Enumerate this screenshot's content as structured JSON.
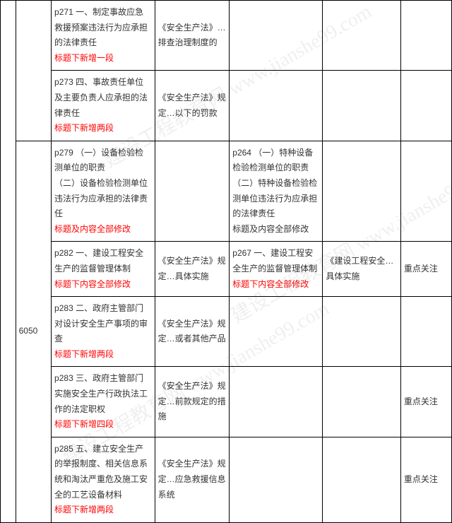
{
  "watermark": {
    "text": "建设工程教育网 www.jianshe99.com"
  },
  "code": "6050",
  "rows": [
    {
      "c2": "p271 一、制定事故应急救援预案违法行为应承担的法律责任",
      "c2_red": "标题下新增一段",
      "c3": "《安全生产法》…排查治理制度的",
      "c4": "",
      "c4_red": "",
      "c5": "",
      "c6": ""
    },
    {
      "c2": "p273 四、事故责任单位及主要负责人应承担的法律责任",
      "c2_red": "标题下新增两段",
      "c3": "《安全生产法》规定…以下的罚款",
      "c4": "",
      "c4_red": "",
      "c5": "",
      "c6": ""
    },
    {
      "c2": "p279 （一）设备检验检测单位的职责\n（二）设备检验检测单位违法行为应承担的法律责任",
      "c2_red": "标题及内容全部修改",
      "c3": "",
      "c4": "p264 （一）特种设备检验检测单位的职责\n（二）特种设备检验检测单位违法行为应承担的法律责任\n标题及内容全部修改",
      "c4_red": "",
      "c5": "",
      "c6": ""
    },
    {
      "c2": "p282 一、建设工程安全生产的监督管理体制",
      "c2_red": "标题下内容全部修改",
      "c3": "《安全生产法》规定…具体实施",
      "c4": "p267 一、建设工程安全生产的监督管理体制",
      "c4_red": "标题下内容全部修改",
      "c5": "《建设工程安全…具体实施",
      "c6": "重点关注"
    },
    {
      "c2": "p283 二、政府主管部门对设计安全生产事项的审查",
      "c2_red": "标题下新增两段",
      "c3": "《安全生产法》规定…或者其他产品",
      "c4": "",
      "c4_red": "",
      "c5": "",
      "c6": ""
    },
    {
      "c2": "p283 三、政府主管部门实施安全生产行政执法工作的法定职权",
      "c2_red": "标题下新增四段",
      "c3": "《安全生产法》规定…前款规定的措施",
      "c4": "",
      "c4_red": "",
      "c5": "",
      "c6": "重点关注"
    },
    {
      "c2": "p285 五、建立安全生产的举报制度、相关信息系统和淘汰严重危及施工安全的工艺设备材料",
      "c2_red": "标题下新增两段",
      "c3": "《安全生产法》规定…应急救援信息系统",
      "c4": "",
      "c4_red": "",
      "c5": "",
      "c6": "重点关注"
    }
  ]
}
